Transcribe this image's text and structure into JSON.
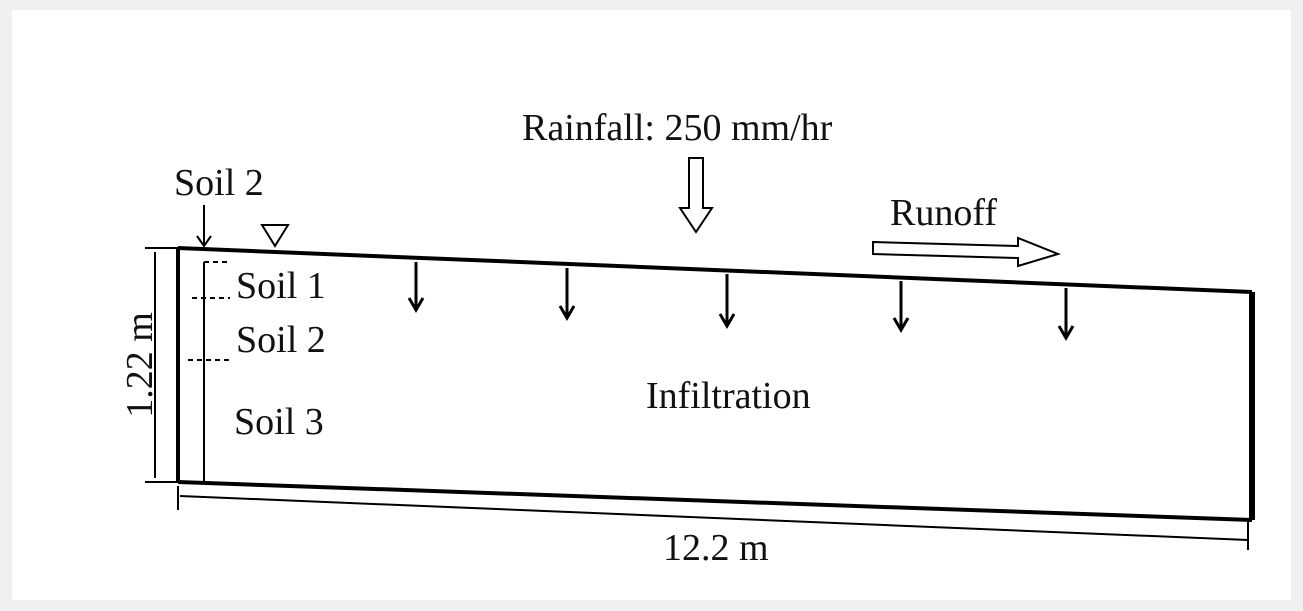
{
  "rainfall": "Rainfall: 250 mm/hr",
  "runoff": "Runoff",
  "top_soil": "Soil 2",
  "layers": [
    "Soil 1",
    "Soil 2",
    "Soil 3"
  ],
  "infiltration": "Infiltration",
  "height": "1.22 m",
  "length": "12.2 m"
}
